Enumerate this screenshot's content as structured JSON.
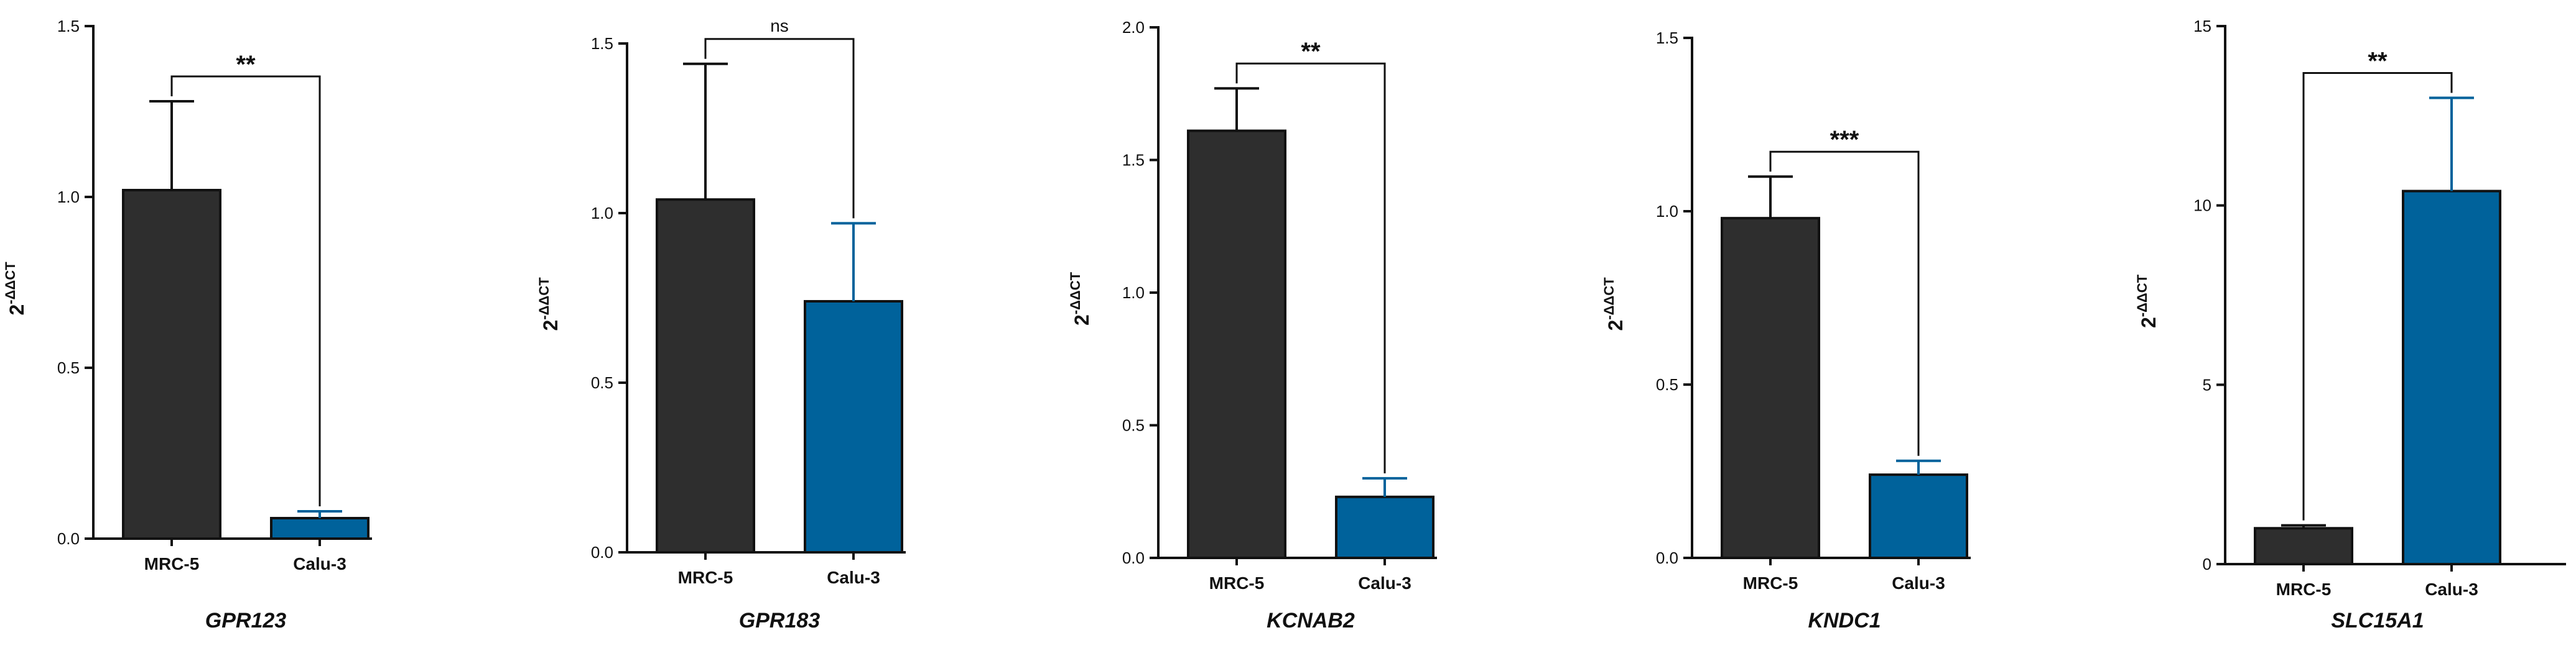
{
  "colors": {
    "MRC-5": "#2e2e2e",
    "Calu-3": "#00629b",
    "axis": "#111111",
    "bar_edge": "#111111"
  },
  "chart_data": [
    {
      "type": "bar",
      "title": "GPR123",
      "ylabel_base": "2",
      "ylabel_sup": "-ΔΔCT",
      "categories": [
        "MRC-5",
        "Calu-3"
      ],
      "values": [
        1.02,
        0.06
      ],
      "errors": [
        0.26,
        0.02
      ],
      "ylim": [
        0,
        1.5
      ],
      "yticks": [
        "0.0",
        "0.5",
        "1.0",
        "1.5"
      ],
      "significance": "**"
    },
    {
      "type": "bar",
      "title": "GPR183",
      "ylabel_base": "2",
      "ylabel_sup": "-ΔΔCT",
      "categories": [
        "MRC-5",
        "Calu-3"
      ],
      "values": [
        1.04,
        0.74
      ],
      "errors": [
        0.4,
        0.23
      ],
      "ylim": [
        0,
        1.5
      ],
      "yticks": [
        "0.0",
        "0.5",
        "1.0",
        "1.5"
      ],
      "significance": "ns"
    },
    {
      "type": "bar",
      "title": "KCNAB2",
      "ylabel_base": "2",
      "ylabel_sup": "-ΔΔCT",
      "categories": [
        "MRC-5",
        "Calu-3"
      ],
      "values": [
        1.61,
        0.23
      ],
      "errors": [
        0.16,
        0.07
      ],
      "ylim": [
        0,
        2.0
      ],
      "yticks": [
        "0.0",
        "0.5",
        "1.0",
        "1.5",
        "2.0"
      ],
      "significance": "**"
    },
    {
      "type": "bar",
      "title": "KNDC1",
      "ylabel_base": "2",
      "ylabel_sup": "-ΔΔCT",
      "categories": [
        "MRC-5",
        "Calu-3"
      ],
      "values": [
        0.98,
        0.24
      ],
      "errors": [
        0.12,
        0.04
      ],
      "ylim": [
        0,
        1.5
      ],
      "yticks": [
        "0.0",
        "0.5",
        "1.0",
        "1.5"
      ],
      "significance": "***"
    },
    {
      "type": "bar",
      "title": "SLC15A1",
      "ylabel_base": "2",
      "ylabel_sup": "-ΔΔCT",
      "categories": [
        "MRC-5",
        "Calu-3"
      ],
      "values": [
        1.0,
        10.4
      ],
      "errors": [
        0.08,
        2.6
      ],
      "ylim": [
        0,
        15
      ],
      "yticks": [
        "0",
        "5",
        "10",
        "15"
      ],
      "significance": "**"
    }
  ]
}
